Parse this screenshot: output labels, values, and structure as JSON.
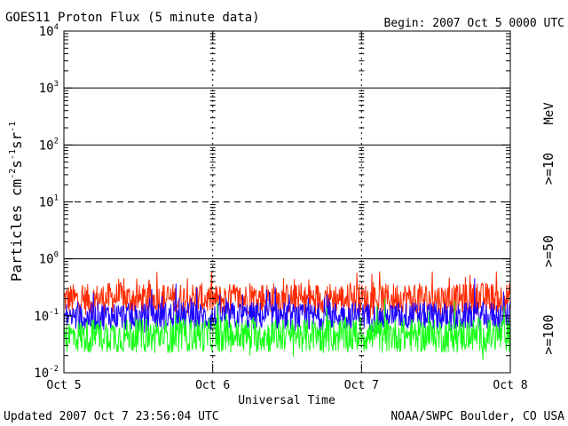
{
  "header": {
    "title": "GOES11 Proton Flux (5 minute data)",
    "begin": "Begin: 2007 Oct 5 0000 UTC"
  },
  "footer": {
    "updated": "Updated 2007 Oct  7 23:56:04 UTC",
    "credit": "NOAA/SWPC Boulder, CO USA"
  },
  "chart_data": {
    "type": "line",
    "title": "GOES11 Proton Flux (5 minute data)",
    "xlabel": "Universal Time",
    "ylabel_parts": [
      "Particles cm",
      "-2",
      "s",
      "-1",
      "sr",
      "-1"
    ],
    "yscale": "log",
    "ylim": [
      0.01,
      10000
    ],
    "xlim": [
      0,
      3
    ],
    "x_ticks": [
      {
        "value": 0,
        "label": "Oct 5"
      },
      {
        "value": 1,
        "label": "Oct 6"
      },
      {
        "value": 2,
        "label": "Oct 7"
      },
      {
        "value": 3,
        "label": "Oct 8"
      }
    ],
    "y_ticks": [
      {
        "value": 0.01,
        "base": "10",
        "exp": "-2"
      },
      {
        "value": 0.1,
        "base": "10",
        "exp": "-1"
      },
      {
        "value": 1,
        "base": "10",
        "exp": "0"
      },
      {
        "value": 10,
        "base": "10",
        "exp": "1"
      },
      {
        "value": 100,
        "base": "10",
        "exp": "2"
      },
      {
        "value": 1000,
        "base": "10",
        "exp": "3"
      },
      {
        "value": 10000,
        "base": "10",
        "exp": "4"
      }
    ],
    "solid_gridlines": [
      1,
      100,
      1000
    ],
    "dashed_gridlines": [
      10
    ],
    "day_dividers": [
      1,
      2
    ],
    "legend_unit": "MeV",
    "series": [
      {
        "name": ">=10",
        "color": "#ff2a00",
        "x": [
          0,
          0.125,
          0.25,
          0.375,
          0.5,
          0.625,
          0.75,
          0.875,
          1,
          1.125,
          1.25,
          1.375,
          1.5,
          1.625,
          1.75,
          1.875,
          2,
          2.125,
          2.25,
          2.375,
          2.5,
          2.625,
          2.75,
          2.875,
          3
        ],
        "values": [
          0.2,
          0.19,
          0.2,
          0.21,
          0.19,
          0.2,
          0.2,
          0.21,
          0.19,
          0.2,
          0.2,
          0.21,
          0.2,
          0.19,
          0.21,
          0.2,
          0.2,
          0.19,
          0.21,
          0.2,
          0.2,
          0.19,
          0.2,
          0.21,
          0.2
        ]
      },
      {
        "name": ">=50",
        "color": "#1a00ff",
        "x": [
          0,
          0.125,
          0.25,
          0.375,
          0.5,
          0.625,
          0.75,
          0.875,
          1,
          1.125,
          1.25,
          1.375,
          1.5,
          1.625,
          1.75,
          1.875,
          2,
          2.125,
          2.25,
          2.375,
          2.5,
          2.625,
          2.75,
          2.875,
          3
        ],
        "values": [
          0.1,
          0.09,
          0.1,
          0.1,
          0.09,
          0.1,
          0.1,
          0.1,
          0.09,
          0.1,
          0.1,
          0.1,
          0.1,
          0.09,
          0.1,
          0.1,
          0.1,
          0.09,
          0.1,
          0.1,
          0.1,
          0.09,
          0.1,
          0.1,
          0.1
        ]
      },
      {
        "name": ">=100",
        "color": "#18ff18",
        "x": [
          0,
          0.125,
          0.25,
          0.375,
          0.5,
          0.625,
          0.75,
          0.875,
          1,
          1.125,
          1.25,
          1.375,
          1.5,
          1.625,
          1.75,
          1.875,
          2,
          2.125,
          2.25,
          2.375,
          2.5,
          2.625,
          2.75,
          2.875,
          3
        ],
        "values": [
          0.045,
          0.043,
          0.046,
          0.044,
          0.045,
          0.043,
          0.045,
          0.046,
          0.044,
          0.045,
          0.045,
          0.044,
          0.046,
          0.045,
          0.044,
          0.045,
          0.045,
          0.044,
          0.046,
          0.045,
          0.044,
          0.045,
          0.046,
          0.044,
          0.045
        ]
      }
    ]
  }
}
